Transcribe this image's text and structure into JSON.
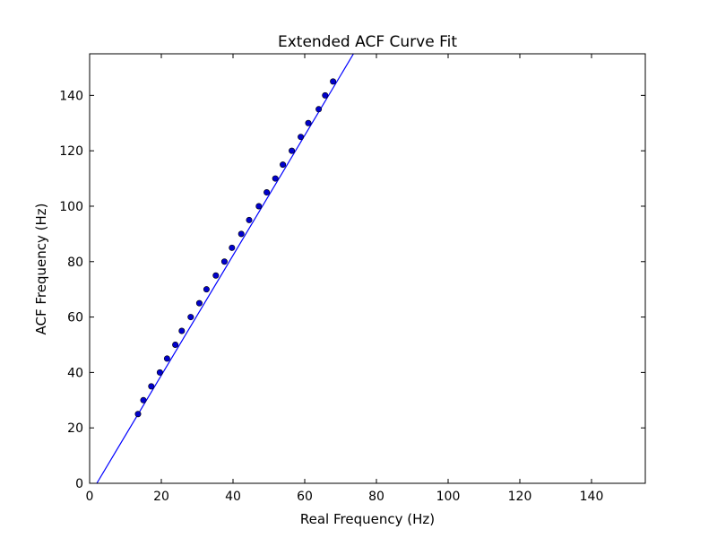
{
  "chart_data": {
    "type": "scatter",
    "title": "Extended ACF Curve Fit",
    "xlabel": "Real Frequency (Hz)",
    "ylabel": "ACF Frequency (Hz)",
    "xlim": [
      0,
      155
    ],
    "ylim": [
      0,
      155
    ],
    "xticks": [
      0,
      20,
      40,
      60,
      80,
      100,
      120,
      140
    ],
    "yticks": [
      0,
      20,
      40,
      60,
      80,
      100,
      120,
      140
    ],
    "grid": false,
    "series": [
      {
        "kind": "markers",
        "color": "#0000cc",
        "x": [
          13.5,
          15.0,
          17.2,
          19.6,
          21.6,
          23.9,
          25.7,
          28.2,
          30.6,
          32.6,
          35.2,
          37.6,
          39.7,
          42.3,
          44.5,
          47.2,
          49.4,
          51.8,
          53.9,
          56.4,
          58.9,
          61.0,
          63.9,
          65.7,
          67.9
        ],
        "y": [
          25,
          30,
          35,
          40,
          45,
          50,
          55,
          60,
          65,
          70,
          75,
          80,
          85,
          90,
          95,
          100,
          105,
          110,
          115,
          120,
          125,
          130,
          135,
          140,
          145
        ]
      },
      {
        "kind": "line",
        "color": "#0000ff",
        "x": [
          2.0,
          73.6
        ],
        "y": [
          0,
          155
        ]
      }
    ]
  }
}
